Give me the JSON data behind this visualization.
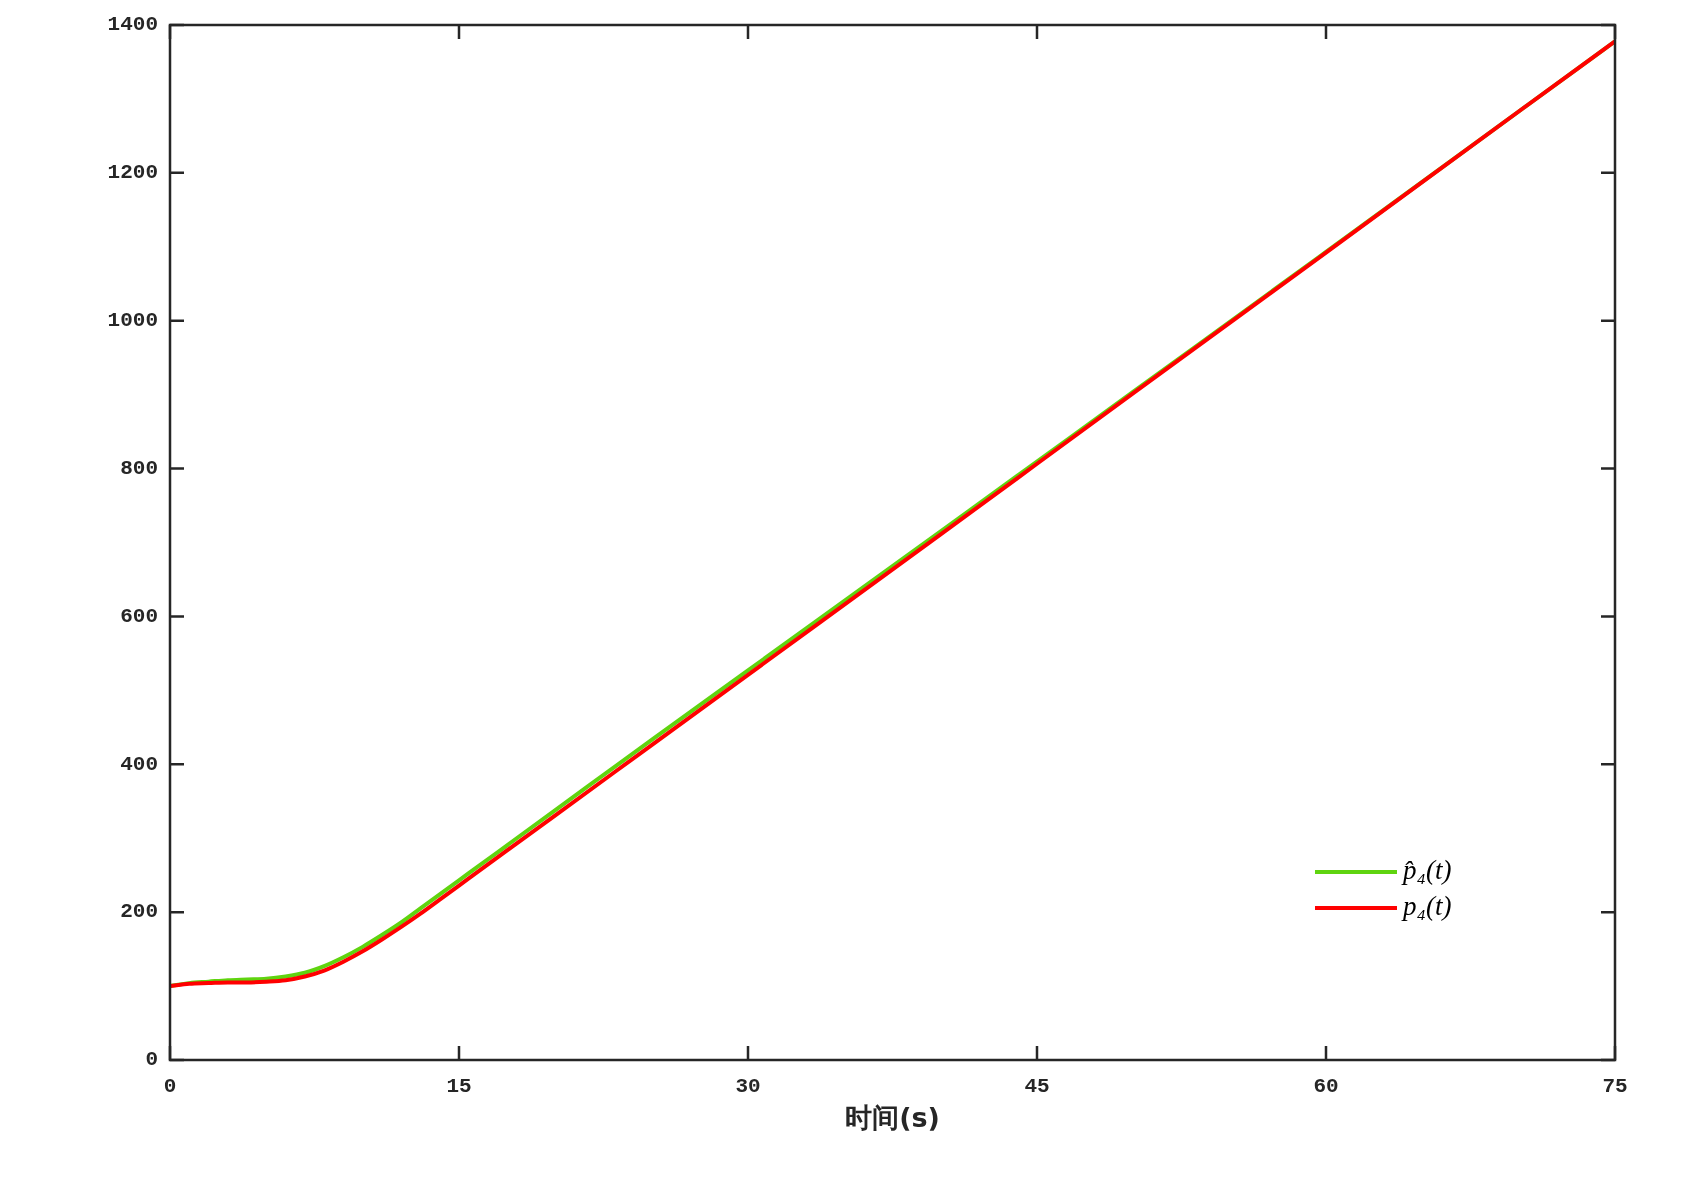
{
  "chart_data": {
    "type": "line",
    "xlabel": "时间(s)",
    "xlim": [
      0,
      75
    ],
    "xticks": [
      0,
      15,
      30,
      45,
      60,
      75
    ],
    "ylim": [
      0,
      1400
    ],
    "yticks": [
      0,
      200,
      400,
      600,
      800,
      1000,
      1200,
      1400
    ],
    "grid": false,
    "legend": "bottom right",
    "marker": "none",
    "line_style": "solid",
    "series": [
      {
        "name": "p̂₄(t)",
        "color": "#5fd40f",
        "x": [
          0,
          1,
          2,
          3,
          4,
          5,
          6,
          7,
          8,
          9,
          10,
          11,
          12,
          13,
          14,
          15,
          17,
          20,
          25,
          30,
          40,
          50,
          60,
          70,
          75
        ],
        "values": [
          100,
          104,
          106,
          108,
          109,
          110,
          113,
          118,
          127,
          139,
          153,
          169,
          186,
          205,
          224,
          243,
          281,
          338,
          433,
          527,
          715,
          904,
          1093,
          1283,
          1378
        ]
      },
      {
        "name": "p₄(t)",
        "color": "#ff0000",
        "x": [
          0,
          1,
          2,
          3,
          4,
          5,
          6,
          7,
          8,
          9,
          10,
          11,
          12,
          13,
          14,
          15,
          17,
          20,
          25,
          30,
          40,
          50,
          60,
          70,
          75
        ],
        "values": [
          100,
          103,
          104,
          105,
          105,
          106,
          108,
          113,
          121,
          133,
          147,
          163,
          180,
          198,
          217,
          236,
          274,
          331,
          426,
          521,
          711,
          902,
          1092,
          1283,
          1378
        ]
      }
    ]
  }
}
